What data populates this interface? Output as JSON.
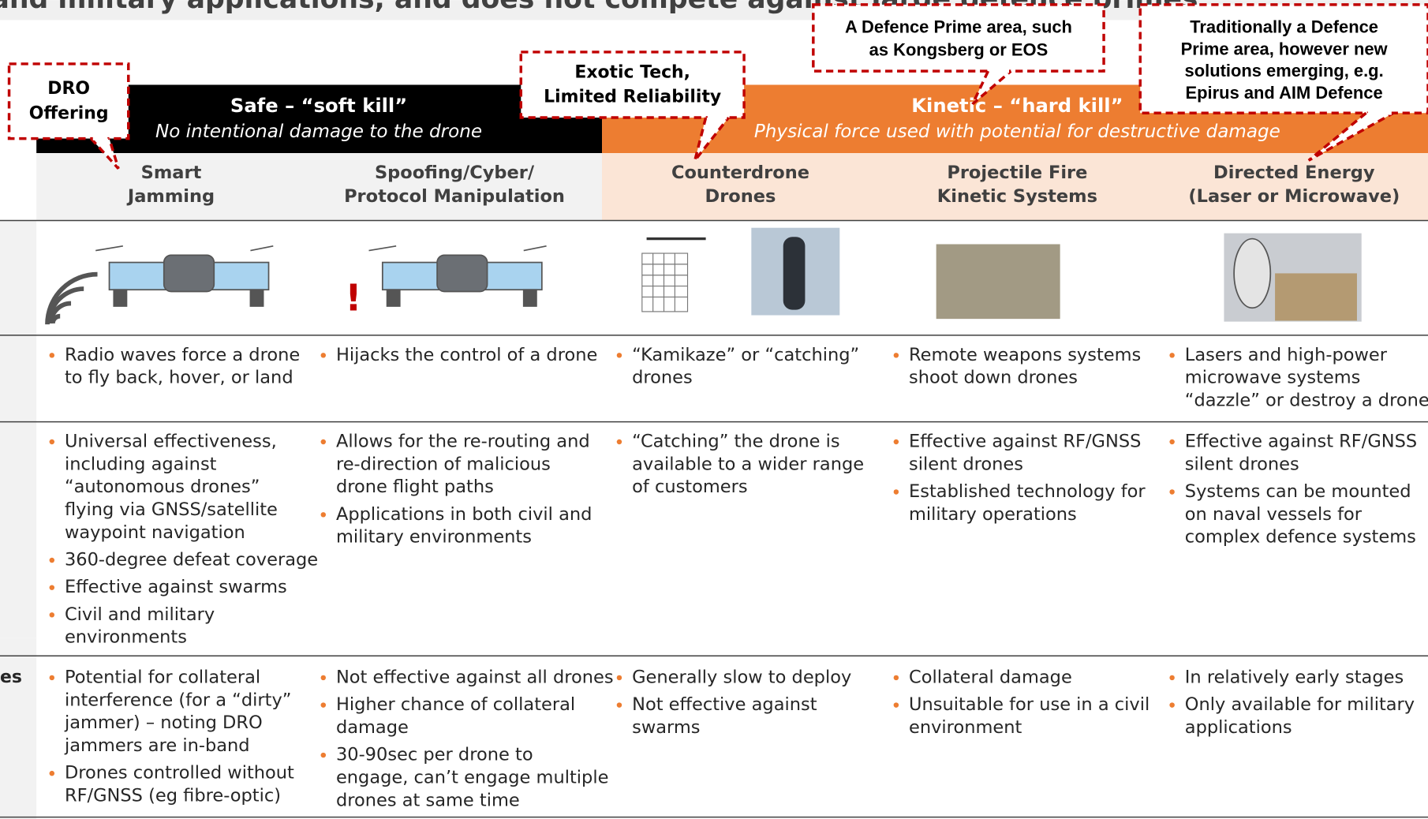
{
  "header": {
    "title": "and military applications, and does not compete against large defence primes",
    "row_label": "es"
  },
  "groups": [
    {
      "title": "Safe – “soft kill”",
      "subtitle": "No intentional damage to the drone"
    },
    {
      "title": "Kinetic – “hard kill”",
      "subtitle": "Physical force used with potential for destructive damage"
    }
  ],
  "columns": [
    [
      "Smart",
      "Jamming"
    ],
    [
      "Spoofing/Cyber/",
      "Protocol Manipulation"
    ],
    [
      "Counterdrone",
      "Drones"
    ],
    [
      "Projectile Fire",
      "Kinetic Systems"
    ],
    [
      "Directed Energy",
      "(Laser or Microwave)"
    ]
  ],
  "rows": [
    {
      "cells": [
        [
          [
            "Radio waves force a drone",
            "to fly back, hover, or land"
          ]
        ],
        [
          [
            "Hijacks the control of a drone"
          ]
        ],
        [
          [
            "“Kamikaze” or “catching”",
            "drones"
          ]
        ],
        [
          [
            "Remote weapons systems",
            "shoot down drones"
          ]
        ],
        [
          [
            "Lasers and high-power",
            "microwave systems",
            "“dazzle” or destroy a drone"
          ]
        ]
      ]
    },
    {
      "cells": [
        [
          [
            "Universal effectiveness,",
            "including against",
            "“autonomous drones”",
            "flying via GNSS/satellite",
            "waypoint navigation"
          ],
          [
            "360-degree defeat coverage"
          ],
          [
            "Effective against swarms"
          ],
          [
            "Civil and military",
            "environments"
          ]
        ],
        [
          [
            "Allows for the re-routing and",
            "re-direction of malicious",
            "drone flight paths"
          ],
          [
            "Applications in both civil and",
            "military environments"
          ]
        ],
        [
          [
            "“Catching” the drone is",
            "available to a wider range",
            "of customers"
          ]
        ],
        [
          [
            "Effective against RF/GNSS",
            "silent drones"
          ],
          [
            "Established technology for",
            "military operations"
          ]
        ],
        [
          [
            "Effective against RF/GNSS",
            "silent drones"
          ],
          [
            "Systems can be mounted",
            "on naval vessels for",
            "complex defence systems"
          ]
        ]
      ]
    },
    {
      "cells": [
        [
          [
            "Potential for collateral",
            "interference (for a “dirty”",
            "jammer) – noting DRO",
            "jammers are in-band"
          ],
          [
            "Drones controlled without",
            "RF/GNSS (eg fibre-optic)"
          ]
        ],
        [
          [
            "Not effective against all drones"
          ],
          [
            "Higher chance of collateral",
            "damage"
          ],
          [
            "30-90sec per drone to",
            "engage, can’t engage multiple",
            "drones at same time"
          ]
        ],
        [
          [
            "Generally slow to deploy"
          ],
          [
            "Not effective against",
            "swarms"
          ]
        ],
        [
          [
            "Collateral damage"
          ],
          [
            "Unsuitable for use in a civil",
            "environment"
          ]
        ],
        [
          [
            "In relatively early stages"
          ],
          [
            "Only available for military",
            "applications"
          ]
        ]
      ]
    }
  ],
  "callouts": [
    [
      "DRO",
      "Offering"
    ],
    [
      "Exotic Tech,",
      "Limited Reliability"
    ],
    [
      "A Defence Prime area, such",
      "as Kongsberg or EOS"
    ],
    [
      "Traditionally a Defence",
      "Prime area, however new",
      "solutions emerging, e.g.",
      "Epirus and AIM Defence"
    ]
  ]
}
